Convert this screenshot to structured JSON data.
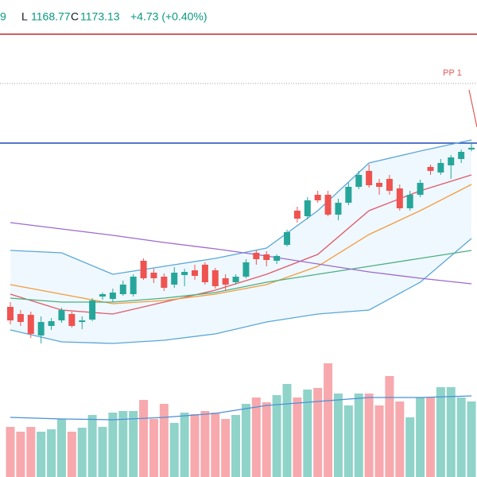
{
  "header": {
    "high_fragment": "9",
    "low_label": "L",
    "low_value": "1168.77",
    "close_label": "C",
    "close_value": "1173.13",
    "change": "+4.73 (+0.40%)"
  },
  "chart_data": {
    "type": "candlestick",
    "ylim": [
      909,
      1359
    ],
    "up_color": "#26a69a",
    "down_color": "#ef5350",
    "candles": {
      "open": [
        973,
        964,
        963,
        937,
        949,
        956,
        964,
        954,
        957,
        986,
        983,
        989,
        989,
        1031,
        1016,
        1011,
        1001,
        1013,
        1019,
        1026,
        1019,
        1009,
        1004,
        1011,
        1041,
        1039,
        1031,
        1051,
        1094,
        1087,
        1114,
        1114,
        1089,
        1104,
        1124,
        1144,
        1129,
        1134,
        1122,
        1097,
        1114,
        1149,
        1142,
        1151,
        1159,
        1171
      ],
      "high": [
        979,
        969,
        967,
        961,
        959,
        972,
        967,
        961,
        984,
        991,
        996,
        1006,
        1014,
        1034,
        1021,
        1015,
        1023,
        1021,
        1026,
        1029,
        1022,
        1014,
        1014,
        1033,
        1044,
        1043,
        1039,
        1070,
        1099,
        1111,
        1119,
        1119,
        1109,
        1129,
        1144,
        1152,
        1134,
        1139,
        1127,
        1119,
        1133,
        1152,
        1159,
        1164,
        1171,
        1179
      ],
      "low": [
        951,
        949,
        934,
        927,
        944,
        953,
        947,
        945,
        955,
        982,
        979,
        987,
        986,
        1007,
        1003,
        993,
        997,
        999,
        1007,
        1001,
        996,
        993,
        1001,
        1009,
        1026,
        1024,
        1027,
        1049,
        1079,
        1083,
        1104,
        1087,
        1082,
        1101,
        1121,
        1123,
        1114,
        1114,
        1094,
        1094,
        1111,
        1139,
        1139,
        1134,
        1154,
        1168.77
      ],
      "close": [
        956,
        954,
        939,
        954,
        955,
        969,
        949,
        956,
        981,
        989,
        991,
        1001,
        1011,
        1009,
        1009,
        997,
        1016,
        1017,
        1012,
        1004,
        999,
        1001,
        1011,
        1029,
        1033,
        1032,
        1037,
        1067,
        1084,
        1107,
        1107,
        1089,
        1104,
        1124,
        1139,
        1126,
        1124,
        1119,
        1097,
        1114,
        1129,
        1144,
        1154,
        1161,
        1168,
        1173.13
      ]
    },
    "overlays": {
      "x": [
        0,
        5,
        10,
        15,
        20,
        25,
        30,
        35,
        40,
        45
      ],
      "band_fill": "#2196f3",
      "series": [
        {
          "color": "#5aa7d8",
          "values": [
            1044,
            1041,
            1014,
            1024,
            1034,
            1047,
            1094,
            1154,
            1169,
            1183
          ]
        },
        {
          "color": "#5aa7d8",
          "values": [
            944,
            929,
            927,
            931,
            939,
            954,
            964,
            969,
            1004,
            1059
          ]
        },
        {
          "color": "#e05a6a",
          "values": [
            989,
            969,
            964,
            979,
            994,
            1014,
            1039,
            1094,
            1119,
            1139
          ]
        },
        {
          "color": "#f39c3d",
          "values": [
            1001,
            989,
            977,
            981,
            989,
            1001,
            1024,
            1064,
            1094,
            1127
          ]
        },
        {
          "color": "#4caf80",
          "values": [
            984,
            979,
            979,
            984,
            991,
            1004,
            1014,
            1024,
            1034,
            1044
          ]
        },
        {
          "color": "#9c6ad0",
          "values": [
            1079,
            1071,
            1063,
            1054,
            1046,
            1037,
            1027,
            1017,
            1009,
            1002
          ]
        }
      ]
    },
    "levels": [
      {
        "value": 1316,
        "color": "#c62828"
      },
      {
        "value": 1254,
        "color": "#9e9e9e",
        "style": "dotted",
        "label": "PP 1",
        "label_color": "#e05a5a"
      },
      {
        "value": 1179,
        "color": "#1e4bb8"
      }
    ],
    "volume": {
      "ylim": [
        0,
        150
      ],
      "up_color": "#8fd3c9",
      "down_color": "#f7a9ad",
      "values": [
        63,
        57,
        63,
        57,
        60,
        73,
        57,
        62,
        78,
        63,
        81,
        83,
        83,
        97,
        73,
        92,
        68,
        81,
        79,
        83,
        81,
        73,
        78,
        92,
        100,
        94,
        103,
        117,
        100,
        110,
        112,
        143,
        105,
        90,
        105,
        105,
        90,
        127,
        95,
        75,
        100,
        100,
        113,
        113,
        100,
        95
      ],
      "ma": {
        "color": "#4a90d9",
        "values": [
          75,
          73,
          72,
          75,
          80,
          90,
          95,
          100,
          100,
          102
        ]
      }
    }
  }
}
